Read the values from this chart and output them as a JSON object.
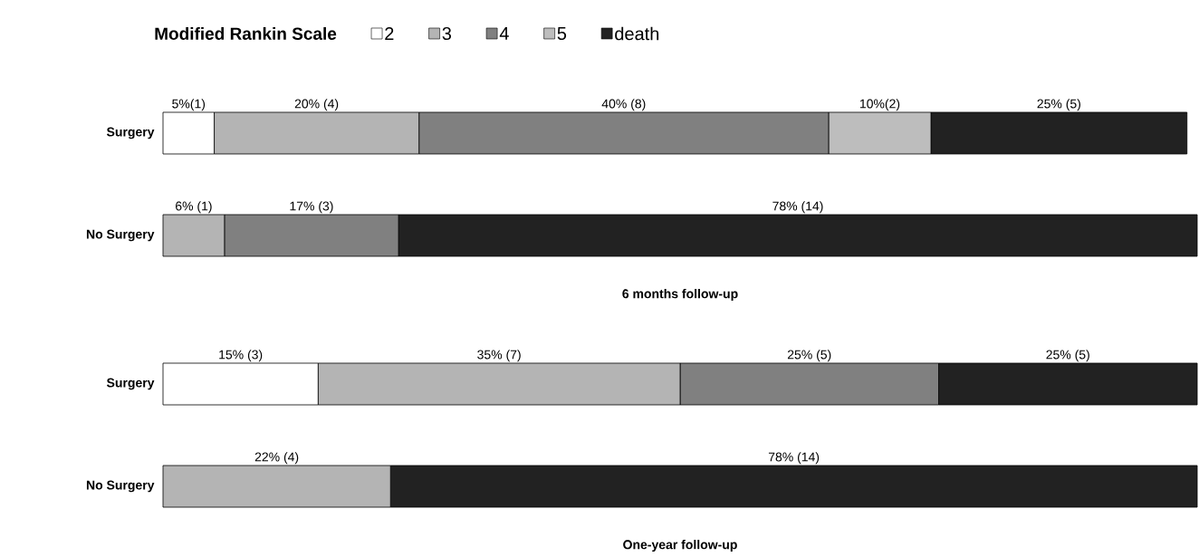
{
  "chart_data": [
    {
      "type": "bar",
      "orientation": "horizontal",
      "stacked": true,
      "legend": "top",
      "legend_title": "Modified Rankin Scale",
      "xlabel": "6 months follow-up",
      "categories": [
        "Surgery",
        "No Surgery"
      ],
      "series": [
        {
          "name": "2",
          "color": "#ffffff",
          "values": [
            5,
            null
          ],
          "value_labels": [
            "5%(1)",
            null
          ]
        },
        {
          "name": "3",
          "color": "#b4b4b4",
          "values": [
            20,
            6
          ],
          "value_labels": [
            "20% (4)",
            "6% (1)"
          ]
        },
        {
          "name": "4",
          "color": "#808080",
          "values": [
            40,
            17
          ],
          "value_labels": [
            "40% (8)",
            "17% (3)"
          ]
        },
        {
          "name": "5",
          "color": "#bdbdbd",
          "values": [
            10,
            null
          ],
          "value_labels": [
            "10%(2)",
            null
          ]
        },
        {
          "name": "death",
          "color": "#222222",
          "values": [
            25,
            78
          ],
          "value_labels": [
            "25% (5)",
            "78% (14)"
          ]
        }
      ]
    },
    {
      "type": "bar",
      "orientation": "horizontal",
      "stacked": true,
      "xlabel": "One-year follow-up",
      "categories": [
        "Surgery",
        "No Surgery"
      ],
      "series": [
        {
          "color": "#ffffff",
          "values": [
            15,
            null
          ],
          "value_labels": [
            "15% (3)",
            null
          ]
        },
        {
          "color": "#b4b4b4",
          "values": [
            35,
            22
          ],
          "value_labels": [
            "35% (7)",
            "22% (4)"
          ]
        },
        {
          "color": "#808080",
          "values": [
            25,
            null
          ],
          "value_labels": [
            "25% (5)",
            null
          ]
        },
        {
          "color": "#bdbdbd",
          "values": [
            null,
            null
          ],
          "value_labels": [
            null,
            null
          ]
        },
        {
          "color": "#222222",
          "values": [
            25,
            78
          ],
          "value_labels": [
            "25% (5)",
            "78% (14)"
          ]
        }
      ]
    }
  ]
}
